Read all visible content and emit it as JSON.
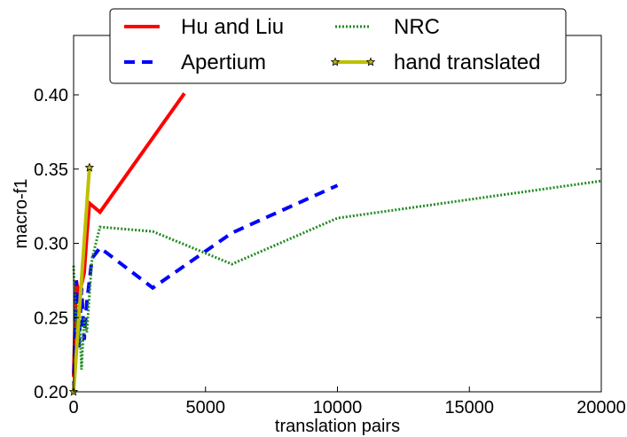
{
  "chart_data": {
    "type": "line",
    "title": "",
    "xlabel": "translation pairs",
    "ylabel": "macro-f1",
    "xlim": [
      0,
      20000
    ],
    "ylim": [
      0.2,
      0.44
    ],
    "xticks": [
      0,
      5000,
      10000,
      15000,
      20000
    ],
    "xtick_labels": [
      "0",
      "5000",
      "10000",
      "15000",
      "20000"
    ],
    "yticks": [
      0.2,
      0.25,
      0.3,
      0.35,
      0.4
    ],
    "ytick_labels": [
      "0.20",
      "0.25",
      "0.30",
      "0.35",
      "0.40"
    ],
    "grid": false,
    "legend_position": "top-center",
    "series": [
      {
        "name": "Hu and Liu",
        "color": "#ff0000",
        "style": "solid",
        "x": [
          0,
          100,
          200,
          400,
          500,
          600,
          1000,
          4200
        ],
        "y": [
          0.21,
          0.275,
          0.265,
          0.28,
          0.305,
          0.327,
          0.321,
          0.401
        ]
      },
      {
        "name": "Apertium",
        "color": "#0000ff",
        "style": "dashed",
        "x": [
          0,
          100,
          200,
          300,
          400,
          500,
          700,
          1000,
          3000,
          6000,
          10000
        ],
        "y": [
          0.2,
          0.275,
          0.23,
          0.27,
          0.235,
          0.26,
          0.29,
          0.297,
          0.27,
          0.307,
          0.339
        ]
      },
      {
        "name": "NRC",
        "color": "#228b22",
        "style": "dotted",
        "x": [
          0,
          100,
          200,
          300,
          400,
          500,
          700,
          1000,
          3000,
          6000,
          10000,
          20000
        ],
        "y": [
          0.285,
          0.24,
          0.26,
          0.215,
          0.25,
          0.24,
          0.29,
          0.311,
          0.308,
          0.286,
          0.317,
          0.342
        ]
      },
      {
        "name": "hand translated",
        "color": "#bfbf00",
        "style": "solid-star",
        "x": [
          0,
          600
        ],
        "y": [
          0.2,
          0.351
        ]
      }
    ]
  }
}
